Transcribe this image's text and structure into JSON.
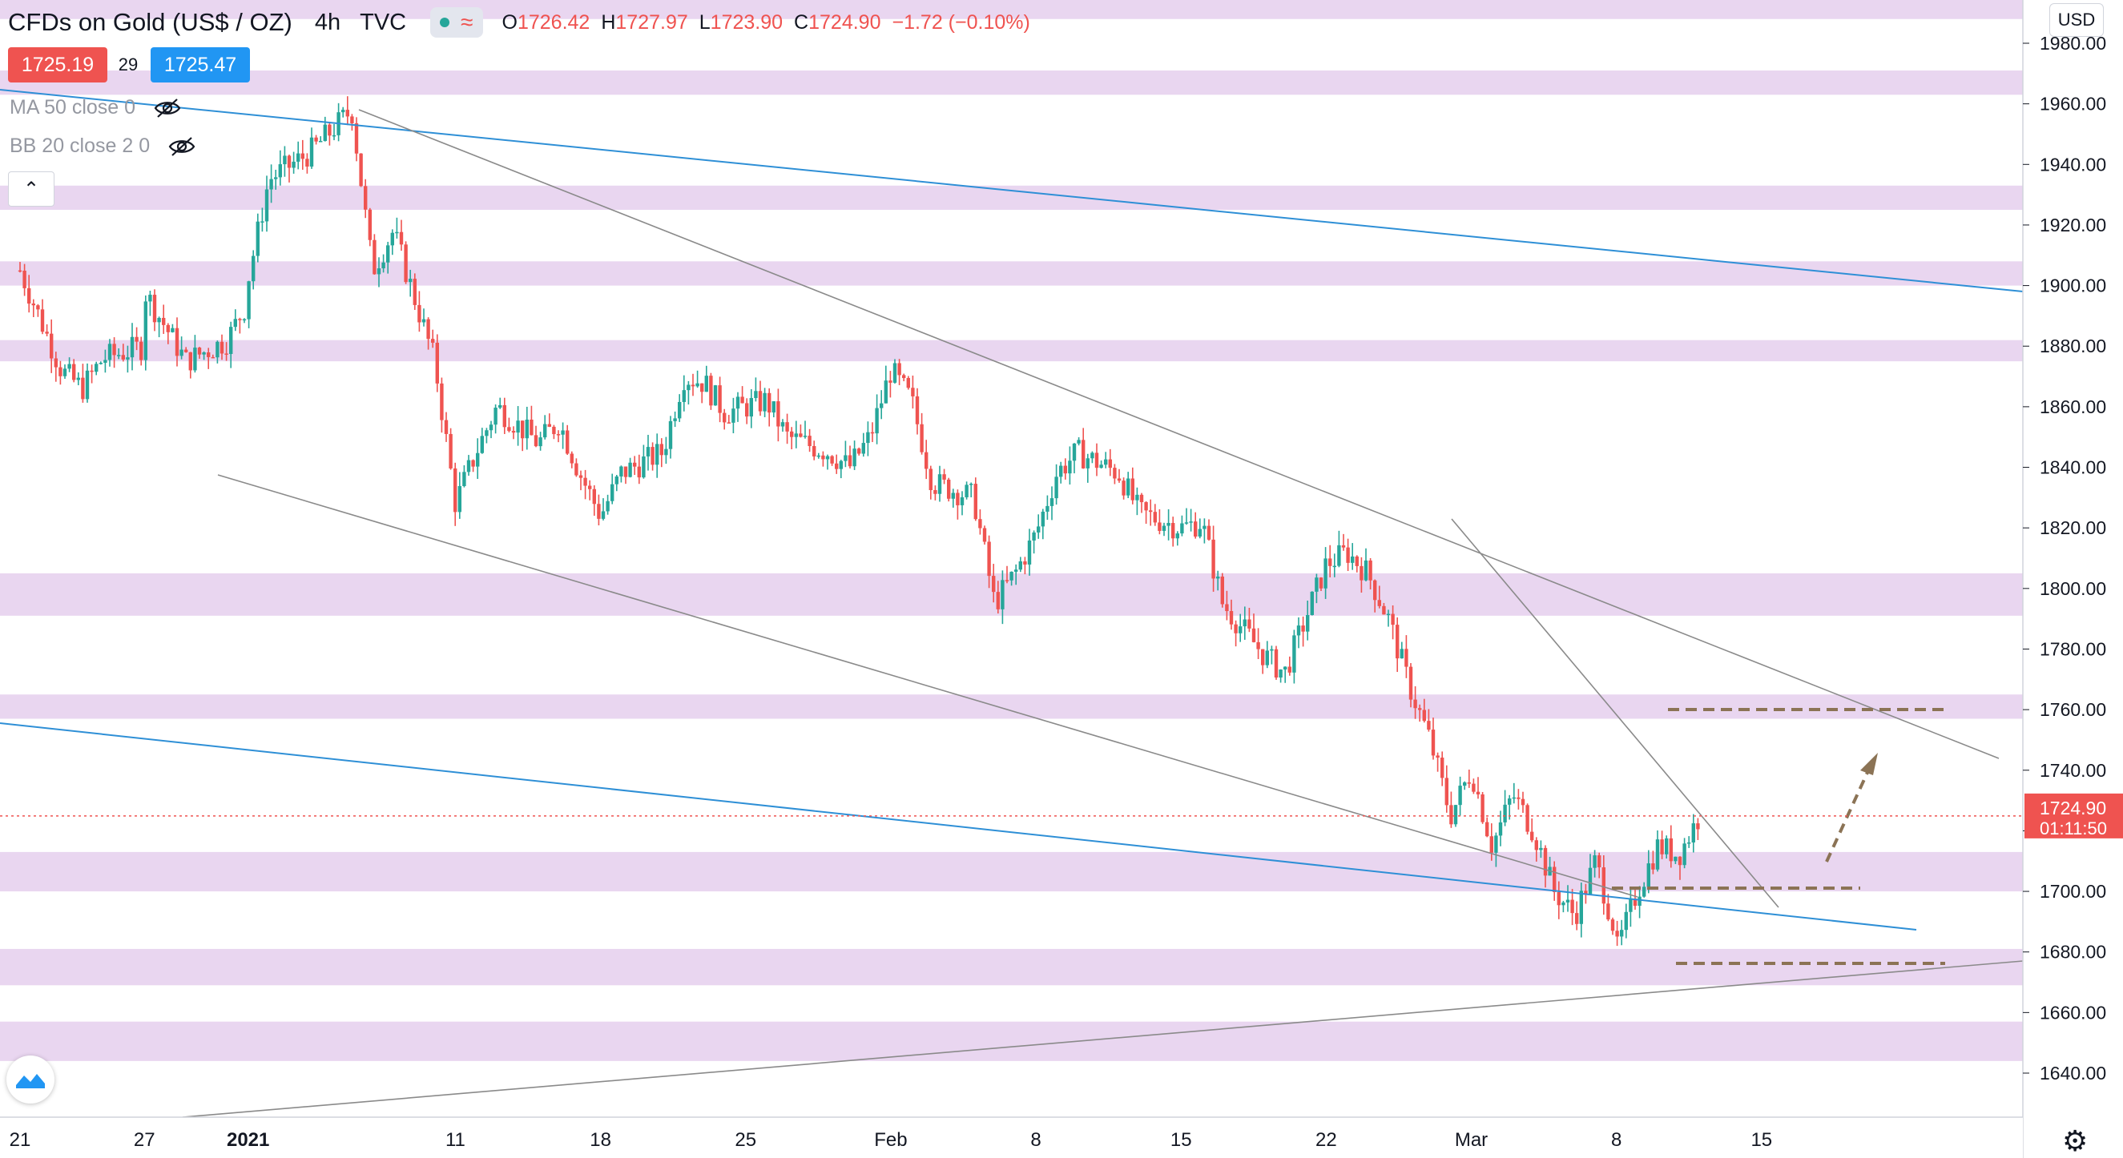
{
  "header": {
    "symbol": "CFDs on Gold (US$ / OZ)",
    "timeframe": "4h",
    "source": "TVC",
    "ohlc": [
      {
        "k": "O",
        "v": "1726.42"
      },
      {
        "k": "H",
        "v": "1727.97"
      },
      {
        "k": "L",
        "v": "1723.90"
      },
      {
        "k": "C",
        "v": "1724.90"
      },
      {
        "k": "",
        "v": "−1.72 (−0.10%)"
      }
    ]
  },
  "quote": {
    "bid": "1725.19",
    "spread": "29",
    "ask": "1725.47"
  },
  "indicators": [
    {
      "label": "MA 50 close 0",
      "icon": "eye-off-icon"
    },
    {
      "label": "BB 20 close 2 0",
      "icon": "eye-off-icon"
    }
  ],
  "axis": {
    "currency": "USD"
  },
  "last_price": {
    "value": "1724.90",
    "countdown": "01:11:50"
  },
  "colors": {
    "up": "#26a69a",
    "down": "#ef5350",
    "zone": "#e1c8eb",
    "trend_blue": "#2e8fd6",
    "trend_gray": "#8a8a8a",
    "target": "#8b7355"
  },
  "chart_data": {
    "type": "candlestick",
    "ylim": [
      1630,
      1995
    ],
    "y_ticks": [
      1640,
      1660,
      1680,
      1700,
      1720,
      1740,
      1760,
      1780,
      1800,
      1820,
      1840,
      1860,
      1880,
      1900,
      1920,
      1940,
      1960,
      1980
    ],
    "x_ticks": [
      {
        "label": "21",
        "date": "2020-12-21"
      },
      {
        "label": "27",
        "date": "2020-12-27"
      },
      {
        "label": "2021",
        "date": "2021-01-01",
        "bold": true
      },
      {
        "label": "11",
        "date": "2021-01-11"
      },
      {
        "label": "18",
        "date": "2021-01-18"
      },
      {
        "label": "25",
        "date": "2021-01-25"
      },
      {
        "label": "Feb",
        "date": "2021-02-01"
      },
      {
        "label": "8",
        "date": "2021-02-08"
      },
      {
        "label": "15",
        "date": "2021-02-15"
      },
      {
        "label": "22",
        "date": "2021-02-22"
      },
      {
        "label": "Mar",
        "date": "2021-03-01"
      },
      {
        "label": "8",
        "date": "2021-03-08"
      },
      {
        "label": "15",
        "date": "2021-03-15"
      }
    ],
    "xlim": [
      "2020-12-21",
      "2021-03-21"
    ],
    "path_points": [
      [
        "2020-12-21",
        1885
      ],
      [
        "2020-12-21",
        1905
      ],
      [
        "2020-12-23",
        1872
      ],
      [
        "2020-12-24",
        1866
      ],
      [
        "2020-12-25",
        1876
      ],
      [
        "2020-12-27",
        1880
      ],
      [
        "2020-12-27",
        1898
      ],
      [
        "2020-12-29",
        1875
      ],
      [
        "2020-12-31",
        1882
      ],
      [
        "2021-01-01",
        1895
      ],
      [
        "2021-01-01",
        1902
      ],
      [
        "2021-01-02",
        1935
      ],
      [
        "2021-01-04",
        1944
      ],
      [
        "2021-01-06",
        1958
      ],
      [
        "2021-01-07",
        1905
      ],
      [
        "2021-01-08",
        1918
      ],
      [
        "2021-01-10",
        1875
      ],
      [
        "2021-01-11",
        1828
      ],
      [
        "2021-01-12",
        1845
      ],
      [
        "2021-01-13",
        1860
      ],
      [
        "2021-01-15",
        1848
      ],
      [
        "2021-01-16",
        1855
      ],
      [
        "2021-01-17",
        1838
      ],
      [
        "2021-01-18",
        1824
      ],
      [
        "2021-01-19",
        1838
      ],
      [
        "2021-01-21",
        1845
      ],
      [
        "2021-01-22",
        1870
      ],
      [
        "2021-01-23",
        1868
      ],
      [
        "2021-01-24",
        1858
      ],
      [
        "2021-01-26",
        1862
      ],
      [
        "2021-01-27",
        1850
      ],
      [
        "2021-01-29",
        1845
      ],
      [
        "2021-01-30",
        1840
      ],
      [
        "2021-01-31",
        1850
      ],
      [
        "2021-02-01",
        1872
      ],
      [
        "2021-02-02",
        1862
      ],
      [
        "2021-02-03",
        1835
      ],
      [
        "2021-02-05",
        1830
      ],
      [
        "2021-02-06",
        1795
      ],
      [
        "2021-02-07",
        1805
      ],
      [
        "2021-02-08",
        1818
      ],
      [
        "2021-02-09",
        1838
      ],
      [
        "2021-02-10",
        1845
      ],
      [
        "2021-02-12",
        1838
      ],
      [
        "2021-02-13",
        1825
      ],
      [
        "2021-02-15",
        1820
      ],
      [
        "2021-02-16",
        1822
      ],
      [
        "2021-02-17",
        1795
      ],
      [
        "2021-02-19",
        1778
      ],
      [
        "2021-02-20",
        1772
      ],
      [
        "2021-02-21",
        1790
      ],
      [
        "2021-02-22",
        1808
      ],
      [
        "2021-02-23",
        1812
      ],
      [
        "2021-02-24",
        1805
      ],
      [
        "2021-02-25",
        1790
      ],
      [
        "2021-02-26",
        1768
      ],
      [
        "2021-02-27",
        1750
      ],
      [
        "2021-02-28",
        1725
      ],
      [
        "2021-03-01",
        1740
      ],
      [
        "2021-03-02",
        1715
      ],
      [
        "2021-03-03",
        1732
      ],
      [
        "2021-03-04",
        1720
      ],
      [
        "2021-03-05",
        1700
      ],
      [
        "2021-03-06",
        1692
      ],
      [
        "2021-03-07",
        1710
      ],
      [
        "2021-03-08",
        1685
      ],
      [
        "2021-03-08",
        1680
      ],
      [
        "2021-03-09",
        1700
      ],
      [
        "2021-03-10",
        1715
      ],
      [
        "2021-03-11",
        1712
      ],
      [
        "2021-03-12",
        1724.9
      ]
    ]
  }
}
